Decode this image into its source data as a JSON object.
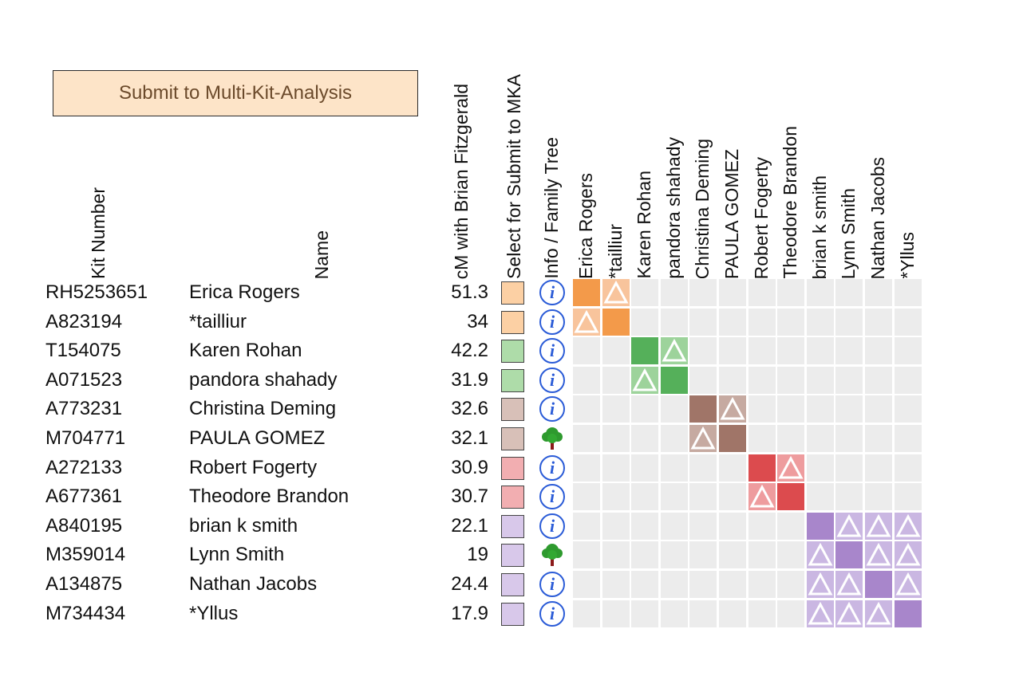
{
  "submit_button": {
    "label": "Submit to Multi-Kit-Analysis"
  },
  "headers": {
    "kit_number": "Kit Number",
    "name": "Name",
    "cm": "cM with Brian Fitzgerald",
    "select": "Select for Submit to MKA",
    "info": "Info / Family Tree"
  },
  "group_colors": {
    "orange": {
      "swatch": "#fcd0a4",
      "solid": "#f39a4a",
      "light": "#f8c49c"
    },
    "green": {
      "swatch": "#aedca9",
      "solid": "#55b05a",
      "light": "#9dd39b"
    },
    "brown": {
      "swatch": "#d8c0b8",
      "solid": "#a07568",
      "light": "#c6aaa1"
    },
    "red": {
      "swatch": "#f2aeb1",
      "solid": "#dc4b4e",
      "light": "#ee9c9e"
    },
    "purple": {
      "swatch": "#d8c8ea",
      "solid": "#a886cb",
      "light": "#cab7e2"
    },
    "grid": "#ececec"
  },
  "rows": [
    {
      "kit": "RH5253651",
      "name": "Erica Rogers",
      "cm": "51.3",
      "group": "orange",
      "icon": "info-icon"
    },
    {
      "kit": "A823194",
      "name": "*tailliur",
      "cm": "34",
      "group": "orange",
      "icon": "info-icon"
    },
    {
      "kit": "T154075",
      "name": "Karen Rohan",
      "cm": "42.2",
      "group": "green",
      "icon": "info-icon"
    },
    {
      "kit": "A071523",
      "name": "pandora shahady",
      "cm": "31.9",
      "group": "green",
      "icon": "info-icon"
    },
    {
      "kit": "A773231",
      "name": "Christina Deming",
      "cm": "32.6",
      "group": "brown",
      "icon": "info-icon"
    },
    {
      "kit": "M704771",
      "name": "PAULA GOMEZ",
      "cm": "32.1",
      "group": "brown",
      "icon": "family-tree-icon"
    },
    {
      "kit": "A272133",
      "name": "Robert Fogerty",
      "cm": "30.9",
      "group": "red",
      "icon": "info-icon"
    },
    {
      "kit": "A677361",
      "name": "Theodore Brandon",
      "cm": "30.7",
      "group": "red",
      "icon": "info-icon"
    },
    {
      "kit": "A840195",
      "name": "brian k smith",
      "cm": "22.1",
      "group": "purple",
      "icon": "info-icon"
    },
    {
      "kit": "M359014",
      "name": "Lynn Smith",
      "cm": "19",
      "group": "purple",
      "icon": "family-tree-icon"
    },
    {
      "kit": "A134875",
      "name": "Nathan Jacobs",
      "cm": "24.4",
      "group": "purple",
      "icon": "info-icon"
    },
    {
      "kit": "M734434",
      "name": "*Yllus",
      "cm": "17.9",
      "group": "purple",
      "icon": "info-icon"
    }
  ]
}
